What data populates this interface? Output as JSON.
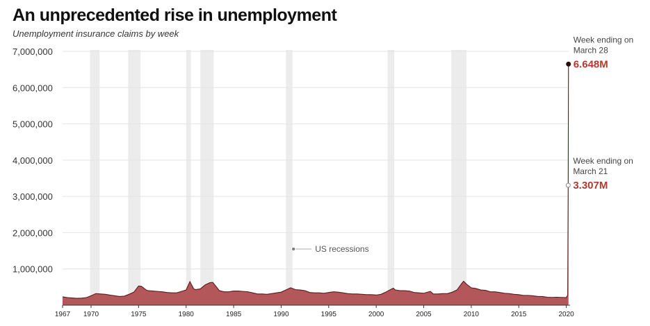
{
  "header": {
    "title": "An unprecedented rise in unemployment",
    "subtitle": "Unemployment insurance claims by week"
  },
  "colors": {
    "area_fill": "#b4575b",
    "area_stroke": "#5a1a1c",
    "recession": "#ececec",
    "highlight": "#b03a2e",
    "grid": "#e4e4e4"
  },
  "chart_data": {
    "type": "area",
    "title": "An unprecedented rise in unemployment",
    "subtitle": "Unemployment insurance claims by week",
    "xlabel": "",
    "ylabel": "",
    "xlim": [
      1967,
      2020.25
    ],
    "ylim": [
      0,
      7000000
    ],
    "grid": true,
    "y_ticks": [
      {
        "value": 1000000,
        "label": "1,000,000"
      },
      {
        "value": 2000000,
        "label": "2,000,000"
      },
      {
        "value": 3000000,
        "label": "3,000,000"
      },
      {
        "value": 4000000,
        "label": "4,000,000"
      },
      {
        "value": 5000000,
        "label": "5,000,000"
      },
      {
        "value": 6000000,
        "label": "6,000,000"
      },
      {
        "value": 7000000,
        "label": "7,000,000"
      }
    ],
    "x_ticks": [
      {
        "value": 1967,
        "label": "1967"
      },
      {
        "value": 1970,
        "label": "1970"
      },
      {
        "value": 1975,
        "label": "1975"
      },
      {
        "value": 1980,
        "label": "1980"
      },
      {
        "value": 1985,
        "label": "1985"
      },
      {
        "value": 1990,
        "label": "1990"
      },
      {
        "value": 1995,
        "label": "1995"
      },
      {
        "value": 2000,
        "label": "2000"
      },
      {
        "value": 2005,
        "label": "2005"
      },
      {
        "value": 2010,
        "label": "2010"
      },
      {
        "value": 2015,
        "label": "2015"
      },
      {
        "value": 2020,
        "label": "2020"
      }
    ],
    "recessions": [
      {
        "start": 1969.9,
        "end": 1970.9
      },
      {
        "start": 1973.9,
        "end": 1975.2
      },
      {
        "start": 1980.0,
        "end": 1980.5
      },
      {
        "start": 1981.5,
        "end": 1982.9
      },
      {
        "start": 1990.5,
        "end": 1991.2
      },
      {
        "start": 2001.2,
        "end": 2001.9
      },
      {
        "start": 2007.9,
        "end": 2009.5
      }
    ],
    "recession_label": "US recessions",
    "series": [
      {
        "values": [
          [
            1967.0,
            230000
          ],
          [
            1967.5,
            210000
          ],
          [
            1968.0,
            200000
          ],
          [
            1968.5,
            190000
          ],
          [
            1969.0,
            195000
          ],
          [
            1969.5,
            210000
          ],
          [
            1970.0,
            260000
          ],
          [
            1970.5,
            320000
          ],
          [
            1971.0,
            310000
          ],
          [
            1971.5,
            300000
          ],
          [
            1972.0,
            280000
          ],
          [
            1972.5,
            260000
          ],
          [
            1973.0,
            240000
          ],
          [
            1973.5,
            250000
          ],
          [
            1974.0,
            300000
          ],
          [
            1974.5,
            360000
          ],
          [
            1975.0,
            530000
          ],
          [
            1975.3,
            520000
          ],
          [
            1975.8,
            420000
          ],
          [
            1976.0,
            400000
          ],
          [
            1976.5,
            390000
          ],
          [
            1977.0,
            380000
          ],
          [
            1977.5,
            370000
          ],
          [
            1978.0,
            350000
          ],
          [
            1978.5,
            340000
          ],
          [
            1979.0,
            340000
          ],
          [
            1979.5,
            380000
          ],
          [
            1980.0,
            420000
          ],
          [
            1980.4,
            650000
          ],
          [
            1980.8,
            450000
          ],
          [
            1981.0,
            430000
          ],
          [
            1981.5,
            450000
          ],
          [
            1982.0,
            560000
          ],
          [
            1982.5,
            620000
          ],
          [
            1982.8,
            630000
          ],
          [
            1983.2,
            500000
          ],
          [
            1983.5,
            400000
          ],
          [
            1984.0,
            370000
          ],
          [
            1984.5,
            370000
          ],
          [
            1985.0,
            390000
          ],
          [
            1985.5,
            390000
          ],
          [
            1986.0,
            380000
          ],
          [
            1986.5,
            370000
          ],
          [
            1987.0,
            340000
          ],
          [
            1987.5,
            310000
          ],
          [
            1988.0,
            310000
          ],
          [
            1988.5,
            300000
          ],
          [
            1989.0,
            320000
          ],
          [
            1989.5,
            340000
          ],
          [
            1990.0,
            360000
          ],
          [
            1990.5,
            420000
          ],
          [
            1991.0,
            480000
          ],
          [
            1991.5,
            430000
          ],
          [
            1992.0,
            420000
          ],
          [
            1992.5,
            400000
          ],
          [
            1993.0,
            350000
          ],
          [
            1993.5,
            340000
          ],
          [
            1994.0,
            340000
          ],
          [
            1994.5,
            330000
          ],
          [
            1995.0,
            350000
          ],
          [
            1995.5,
            370000
          ],
          [
            1996.0,
            360000
          ],
          [
            1996.5,
            340000
          ],
          [
            1997.0,
            320000
          ],
          [
            1997.5,
            310000
          ],
          [
            1998.0,
            310000
          ],
          [
            1998.5,
            300000
          ],
          [
            1999.0,
            290000
          ],
          [
            1999.5,
            290000
          ],
          [
            2000.0,
            280000
          ],
          [
            2000.5,
            300000
          ],
          [
            2001.0,
            360000
          ],
          [
            2001.5,
            430000
          ],
          [
            2001.8,
            470000
          ],
          [
            2002.0,
            420000
          ],
          [
            2002.5,
            400000
          ],
          [
            2003.0,
            400000
          ],
          [
            2003.5,
            390000
          ],
          [
            2004.0,
            350000
          ],
          [
            2004.5,
            340000
          ],
          [
            2005.0,
            330000
          ],
          [
            2005.7,
            380000
          ],
          [
            2006.0,
            310000
          ],
          [
            2006.5,
            310000
          ],
          [
            2007.0,
            320000
          ],
          [
            2007.5,
            320000
          ],
          [
            2008.0,
            360000
          ],
          [
            2008.5,
            420000
          ],
          [
            2009.0,
            600000
          ],
          [
            2009.2,
            660000
          ],
          [
            2009.5,
            580000
          ],
          [
            2010.0,
            480000
          ],
          [
            2010.5,
            460000
          ],
          [
            2011.0,
            420000
          ],
          [
            2011.5,
            410000
          ],
          [
            2012.0,
            370000
          ],
          [
            2012.5,
            370000
          ],
          [
            2013.0,
            350000
          ],
          [
            2013.5,
            330000
          ],
          [
            2014.0,
            320000
          ],
          [
            2014.5,
            300000
          ],
          [
            2015.0,
            290000
          ],
          [
            2015.5,
            270000
          ],
          [
            2016.0,
            270000
          ],
          [
            2016.5,
            260000
          ],
          [
            2017.0,
            240000
          ],
          [
            2017.5,
            240000
          ],
          [
            2018.0,
            220000
          ],
          [
            2018.5,
            215000
          ],
          [
            2019.0,
            220000
          ],
          [
            2019.5,
            215000
          ],
          [
            2020.0,
            210000
          ],
          [
            2020.15,
            280000
          ],
          [
            2020.2,
            3307000
          ],
          [
            2020.23,
            6648000
          ]
        ]
      }
    ],
    "annotations": [
      {
        "id": "march28",
        "x": 2020.23,
        "y": 6648000,
        "line1": "Week ending on",
        "line2": "March 28",
        "value_label": "6.648M"
      },
      {
        "id": "march21",
        "x": 2020.2,
        "y": 3307000,
        "line1": "Week ending on",
        "line2": "March 21",
        "value_label": "3.307M"
      }
    ]
  }
}
